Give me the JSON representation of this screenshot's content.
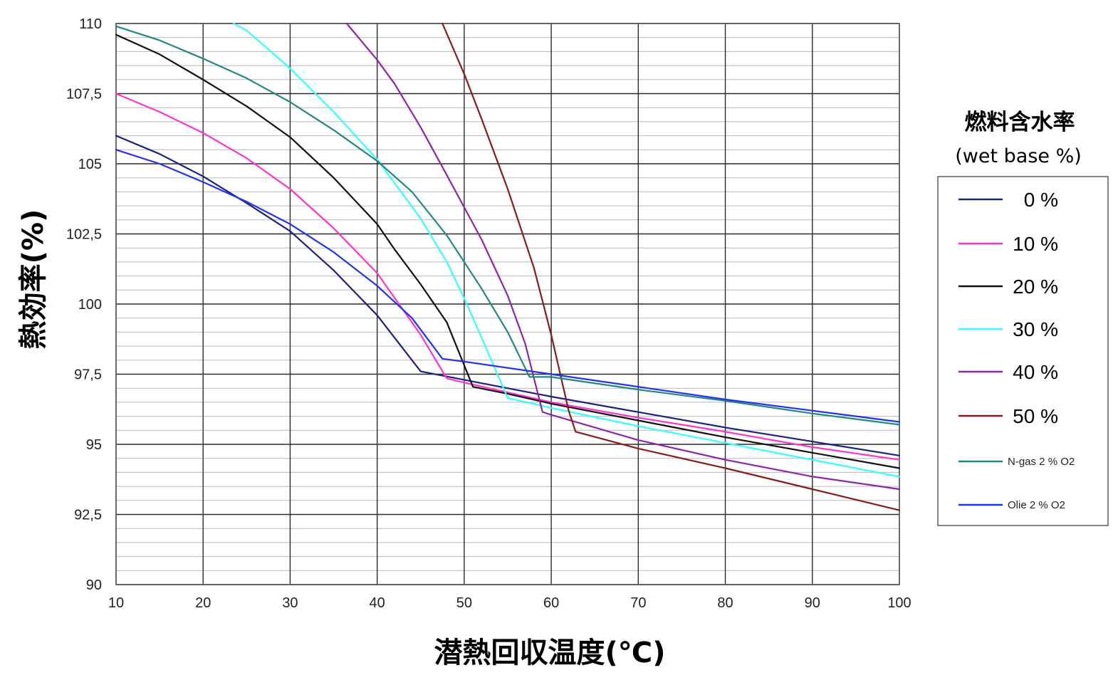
{
  "chart_data": {
    "type": "line",
    "xlabel": "潜熱回収温度(℃)",
    "ylabel": "熱効率(%)",
    "xlim": [
      10,
      100
    ],
    "ylim": [
      90,
      110
    ],
    "x_ticks": [
      "10",
      "20",
      "30",
      "40",
      "50",
      "60",
      "70",
      "80",
      "90",
      "100"
    ],
    "y_ticks": [
      "90",
      "92,5",
      "95",
      "97,5",
      "100",
      "102,5",
      "105",
      "107,5",
      "110"
    ],
    "grid": true,
    "legend": {
      "title": "燃料含水率",
      "subtitle": "(wet base %)",
      "placement": "right"
    },
    "series": [
      {
        "name": "0 %",
        "color": "#1a237e",
        "points": [
          [
            10,
            106.0
          ],
          [
            15,
            105.35
          ],
          [
            20,
            104.55
          ],
          [
            25,
            103.6
          ],
          [
            30,
            102.6
          ],
          [
            35,
            101.2
          ],
          [
            40,
            99.6
          ],
          [
            42,
            98.8
          ],
          [
            45,
            97.6
          ],
          [
            50,
            97.3
          ],
          [
            60,
            96.7
          ],
          [
            70,
            96.15
          ],
          [
            80,
            95.6
          ],
          [
            90,
            95.1
          ],
          [
            100,
            94.6
          ]
        ]
      },
      {
        "name": "10 %",
        "color": "#ff33cc",
        "points": [
          [
            10,
            107.5
          ],
          [
            15,
            106.85
          ],
          [
            20,
            106.1
          ],
          [
            25,
            105.2
          ],
          [
            30,
            104.1
          ],
          [
            35,
            102.7
          ],
          [
            40,
            101.1
          ],
          [
            45,
            98.9
          ],
          [
            48,
            97.35
          ],
          [
            50,
            97.2
          ],
          [
            60,
            96.5
          ],
          [
            70,
            95.95
          ],
          [
            80,
            95.45
          ],
          [
            90,
            94.9
          ],
          [
            100,
            94.45
          ]
        ]
      },
      {
        "name": "20 %",
        "color": "#111111",
        "points": [
          [
            10,
            109.6
          ],
          [
            15,
            108.9
          ],
          [
            20,
            108.0
          ],
          [
            25,
            107.05
          ],
          [
            30,
            105.95
          ],
          [
            35,
            104.5
          ],
          [
            40,
            102.85
          ],
          [
            42,
            101.95
          ],
          [
            45,
            100.7
          ],
          [
            48,
            99.35
          ],
          [
            51,
            97.05
          ],
          [
            55,
            96.8
          ],
          [
            60,
            96.45
          ],
          [
            70,
            95.85
          ],
          [
            80,
            95.25
          ],
          [
            90,
            94.7
          ],
          [
            100,
            94.15
          ]
        ]
      },
      {
        "name": "30 %",
        "color": "#33ffff",
        "points": [
          [
            23.5,
            110.0
          ],
          [
            25,
            109.75
          ],
          [
            30,
            108.4
          ],
          [
            35,
            106.85
          ],
          [
            40,
            105.15
          ],
          [
            45,
            103.05
          ],
          [
            48,
            101.5
          ],
          [
            50,
            100.2
          ],
          [
            52,
            98.8
          ],
          [
            55,
            96.65
          ],
          [
            60,
            96.3
          ],
          [
            70,
            95.65
          ],
          [
            80,
            95.05
          ],
          [
            90,
            94.45
          ],
          [
            100,
            93.85
          ]
        ]
      },
      {
        "name": "40 %",
        "color": "#8e24aa",
        "points": [
          [
            36.5,
            110.0
          ],
          [
            40,
            108.7
          ],
          [
            42,
            107.85
          ],
          [
            45,
            106.3
          ],
          [
            48,
            104.6
          ],
          [
            52,
            102.3
          ],
          [
            55,
            100.3
          ],
          [
            57,
            98.6
          ],
          [
            59,
            96.15
          ],
          [
            60,
            96.05
          ],
          [
            70,
            95.15
          ],
          [
            80,
            94.45
          ],
          [
            90,
            93.85
          ],
          [
            100,
            93.4
          ]
        ]
      },
      {
        "name": "50 %",
        "color": "#8b1a1a",
        "points": [
          [
            47.5,
            110.0
          ],
          [
            50,
            108.2
          ],
          [
            52,
            106.6
          ],
          [
            55,
            104.1
          ],
          [
            58,
            101.3
          ],
          [
            60,
            98.9
          ],
          [
            62,
            96.2
          ],
          [
            62.8,
            95.45
          ],
          [
            70,
            94.85
          ],
          [
            80,
            94.15
          ],
          [
            90,
            93.4
          ],
          [
            100,
            92.65
          ]
        ]
      },
      {
        "name": "N-gas 2 % O2",
        "color": "#1e8a80",
        "points": [
          [
            10,
            109.9
          ],
          [
            15,
            109.4
          ],
          [
            20,
            108.75
          ],
          [
            25,
            108.05
          ],
          [
            30,
            107.2
          ],
          [
            35,
            106.2
          ],
          [
            40,
            105.1
          ],
          [
            44,
            104.0
          ],
          [
            48,
            102.45
          ],
          [
            52,
            100.55
          ],
          [
            55,
            99.0
          ],
          [
            57.5,
            97.4
          ],
          [
            60,
            97.4
          ],
          [
            70,
            96.95
          ],
          [
            80,
            96.55
          ],
          [
            90,
            96.1
          ],
          [
            100,
            95.7
          ]
        ]
      },
      {
        "name": "Olie 2 % O2",
        "color": "#2233ee",
        "points": [
          [
            10,
            105.5
          ],
          [
            15,
            105.0
          ],
          [
            20,
            104.35
          ],
          [
            25,
            103.65
          ],
          [
            30,
            102.85
          ],
          [
            35,
            101.85
          ],
          [
            40,
            100.65
          ],
          [
            44,
            99.5
          ],
          [
            47.5,
            98.05
          ],
          [
            50,
            97.95
          ],
          [
            60,
            97.5
          ],
          [
            70,
            97.05
          ],
          [
            80,
            96.6
          ],
          [
            90,
            96.2
          ],
          [
            100,
            95.8
          ]
        ]
      }
    ]
  }
}
